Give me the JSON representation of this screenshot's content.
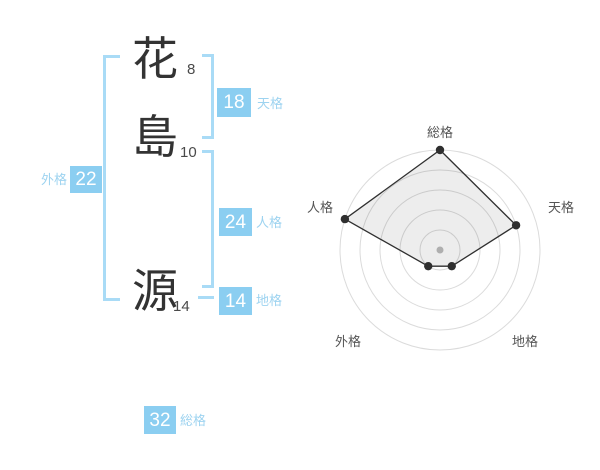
{
  "name_block": {
    "characters": [
      {
        "char": "花",
        "strokes": "8"
      },
      {
        "char": "島",
        "strokes": "10"
      },
      {
        "char": "源",
        "strokes": "14"
      }
    ]
  },
  "kaku": {
    "tenkaku": {
      "label": "天格",
      "value": "18"
    },
    "jinkaku": {
      "label": "人格",
      "value": "24"
    },
    "chikaku": {
      "label": "地格",
      "value": "14"
    },
    "gaikaku": {
      "label": "外格",
      "value": "22"
    },
    "soukaku": {
      "label": "総格",
      "value": "32"
    }
  },
  "colors": {
    "badge_bg": "#8BCEF1",
    "badge_text": "#FFFFFF",
    "label_blue": "#9DD3F0",
    "bracket_blue": "#A9DBF6",
    "kanji_text": "#333333",
    "stroke_count_text": "#4A4A4A",
    "radar_ring": "#DBDBDB",
    "radar_label": "#555555",
    "radar_line": "#303030",
    "radar_point": "#2F2F2F",
    "radar_fill": "rgba(0,0,0,0.07)",
    "radar_center_dot": "#BDBDBD"
  },
  "chart_data": {
    "type": "radar",
    "categories": [
      "総格",
      "天格",
      "地格",
      "外格",
      "人格"
    ],
    "axis_numbers": [
      32,
      18,
      14,
      22,
      24
    ],
    "values": [
      5,
      4,
      1,
      1,
      5
    ],
    "max": 5,
    "rings": 5,
    "grid": "concentric-circles",
    "legend": "none",
    "title": ""
  }
}
